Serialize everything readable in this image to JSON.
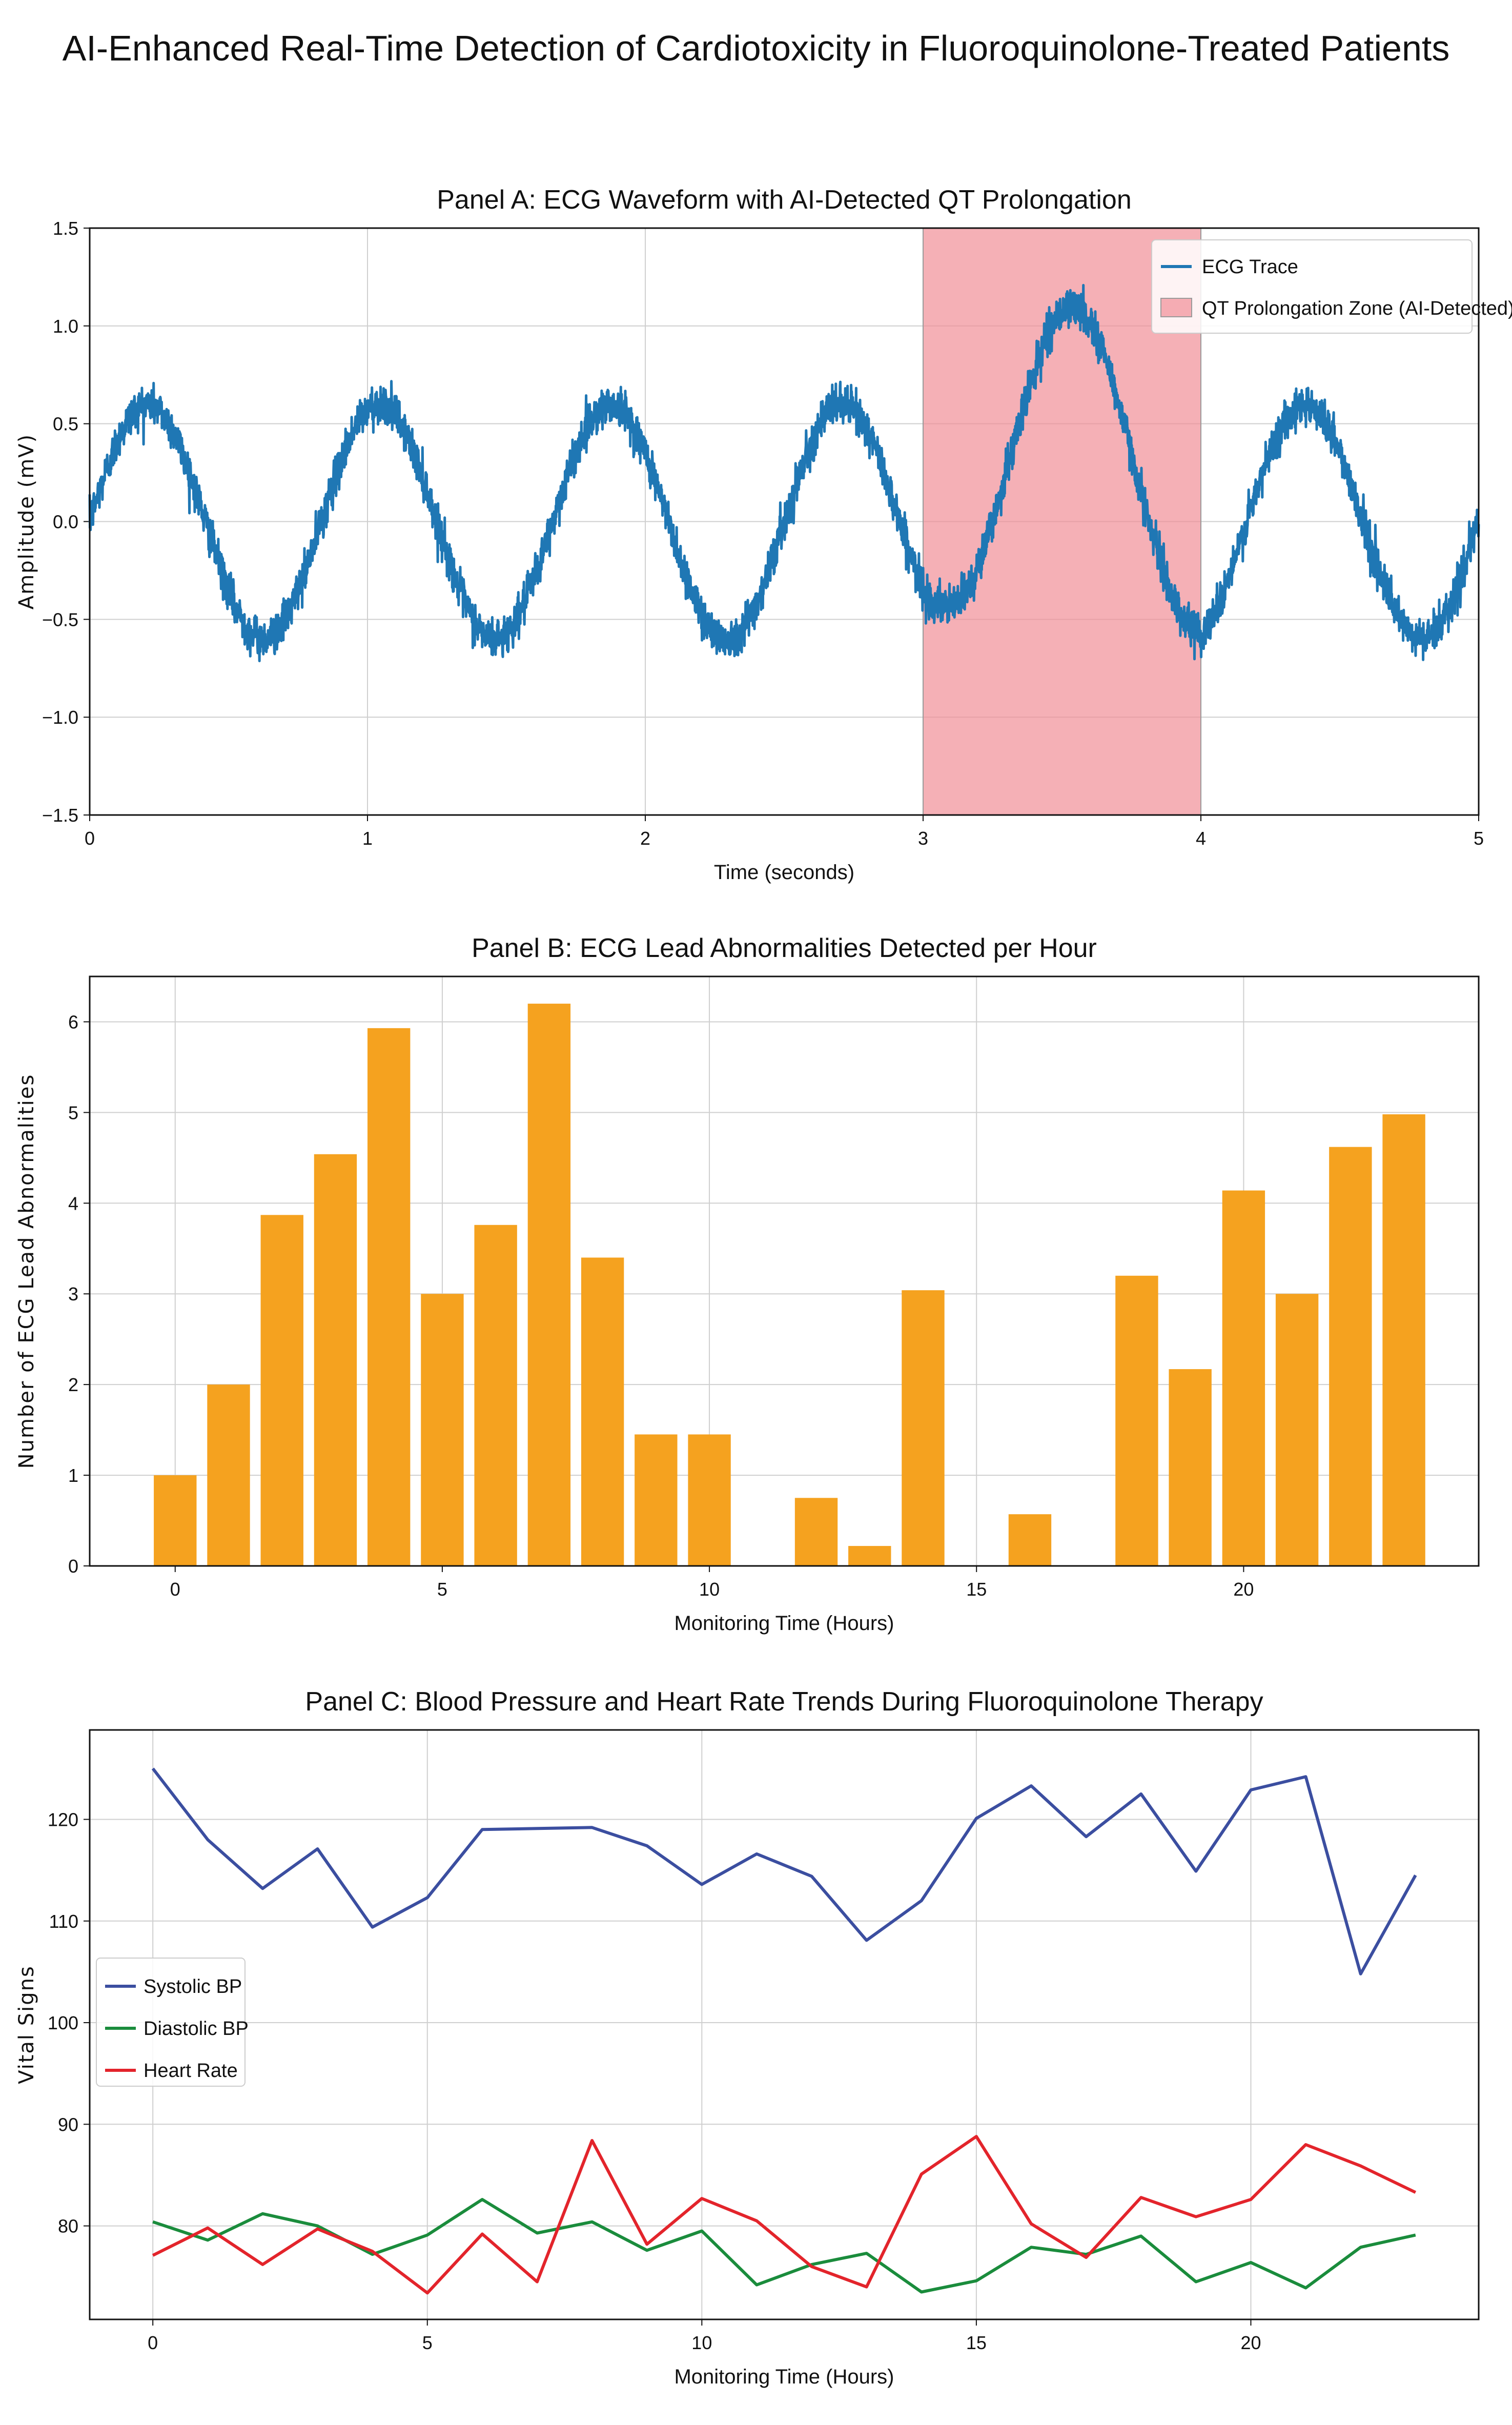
{
  "figure_title": "AI-Enhanced Real-Time Detection of Cardiotoxicity in Fluoroquinolone-Treated Patients",
  "colors": {
    "ecg": "#1f77b4",
    "qt_zone": "#f08a94",
    "bars": "#f5a21f",
    "systolic": "#3b4ea0",
    "diastolic": "#1a8c3c",
    "heart_rate": "#e3242b",
    "grid": "#cfcfcf"
  },
  "chart_data": [
    {
      "id": "panelA",
      "type": "line",
      "title": "Panel A: ECG Waveform with AI-Detected QT Prolongation",
      "xlabel": "Time (seconds)",
      "ylabel": "Amplitude (mV)",
      "xlim": [
        0,
        5
      ],
      "ylim": [
        -1.5,
        1.5
      ],
      "xticks": [
        0,
        1,
        2,
        3,
        4,
        5
      ],
      "xtick_labels": [
        "0",
        "1",
        "2",
        "3",
        "4",
        "5"
      ],
      "yticks": [
        -1.5,
        -1.0,
        -0.5,
        0.0,
        0.5,
        1.0,
        1.5
      ],
      "ytick_labels": [
        "−1.5",
        "−1.0",
        "−0.5",
        "0.0",
        "0.5",
        "1.0",
        "1.5"
      ],
      "grid": true,
      "legend_position": "top-right",
      "series": [
        {
          "name": "ECG Trace",
          "kind": "sine_with_noise",
          "amplitude": 0.6,
          "frequency_hz": 1.2,
          "noise_mv": 0.05,
          "sample_rate_hz": 1000
        }
      ],
      "shaded_region": {
        "name": "QT Prolongation Zone (AI-Detected)",
        "x_start": 3,
        "x_end": 4,
        "added_amplitude_mv": 0.5
      }
    },
    {
      "id": "panelB",
      "type": "bar",
      "title": "Panel B: ECG Lead Abnormalities Detected per Hour",
      "xlabel": "Monitoring Time (Hours)",
      "ylabel": "Number of ECG Lead Abnormalities",
      "xlim": [
        -1.6,
        24.4
      ],
      "ylim": [
        0,
        6.5
      ],
      "xticks": [
        0,
        5,
        10,
        15,
        20
      ],
      "xtick_labels": [
        "0",
        "5",
        "10",
        "15",
        "20"
      ],
      "yticks": [
        0,
        1,
        2,
        3,
        4,
        5,
        6
      ],
      "ytick_labels": [
        "0",
        "1",
        "2",
        "3",
        "4",
        "5",
        "6"
      ],
      "grid": true,
      "categories": [
        0,
        1,
        2,
        3,
        4,
        5,
        6,
        7,
        8,
        9,
        10,
        11,
        12,
        13,
        14,
        15,
        16,
        17,
        18,
        19,
        20,
        21,
        22,
        23
      ],
      "values": [
        1.0,
        2.0,
        3.87,
        4.54,
        5.93,
        3.0,
        3.76,
        6.2,
        3.4,
        1.45,
        1.45,
        0,
        0.75,
        0.22,
        3.04,
        0,
        0.57,
        0,
        3.2,
        2.17,
        4.14,
        3.0,
        4.62,
        4.98
      ]
    },
    {
      "id": "panelC",
      "type": "line",
      "title": "Panel C: Blood Pressure and Heart Rate Trends During Fluoroquinolone Therapy",
      "xlabel": "Monitoring Time (Hours)",
      "ylabel": "Vital Signs",
      "xlim": [
        -1.15,
        24.15
      ],
      "ylim": [
        70.8,
        128.8
      ],
      "xticks": [
        0,
        5,
        10,
        15,
        20
      ],
      "xtick_labels": [
        "0",
        "5",
        "10",
        "15",
        "20"
      ],
      "yticks": [
        80,
        90,
        100,
        110,
        120
      ],
      "ytick_labels": [
        "80",
        "90",
        "100",
        "110",
        "120"
      ],
      "grid": true,
      "legend_position": "center-left",
      "x": [
        0,
        1,
        2,
        3,
        4,
        5,
        6,
        7,
        8,
        9,
        10,
        11,
        12,
        13,
        14,
        15,
        16,
        17,
        18,
        19,
        20,
        21,
        22,
        23
      ],
      "series": [
        {
          "name": "Systolic BP",
          "values": [
            125.0,
            118.0,
            113.2,
            117.1,
            109.4,
            112.3,
            119.0,
            119.1,
            119.2,
            117.4,
            113.6,
            116.6,
            114.4,
            108.1,
            112.0,
            120.1,
            123.3,
            118.3,
            122.5,
            114.9,
            122.9,
            124.2,
            104.8,
            114.5
          ]
        },
        {
          "name": "Diastolic BP",
          "values": [
            80.4,
            78.6,
            81.2,
            80.0,
            77.2,
            79.1,
            82.6,
            79.3,
            80.4,
            77.6,
            79.5,
            74.2,
            76.2,
            77.3,
            73.5,
            74.6,
            77.9,
            77.2,
            79.0,
            74.5,
            76.4,
            73.9,
            77.9,
            79.1
          ]
        },
        {
          "name": "Heart Rate",
          "values": [
            77.1,
            79.8,
            76.2,
            79.7,
            77.5,
            73.4,
            79.2,
            74.5,
            88.4,
            78.2,
            82.7,
            80.5,
            76.0,
            74.0,
            85.1,
            88.8,
            80.2,
            76.9,
            82.8,
            80.9,
            82.6,
            88.0,
            85.9,
            83.3
          ]
        }
      ]
    }
  ]
}
